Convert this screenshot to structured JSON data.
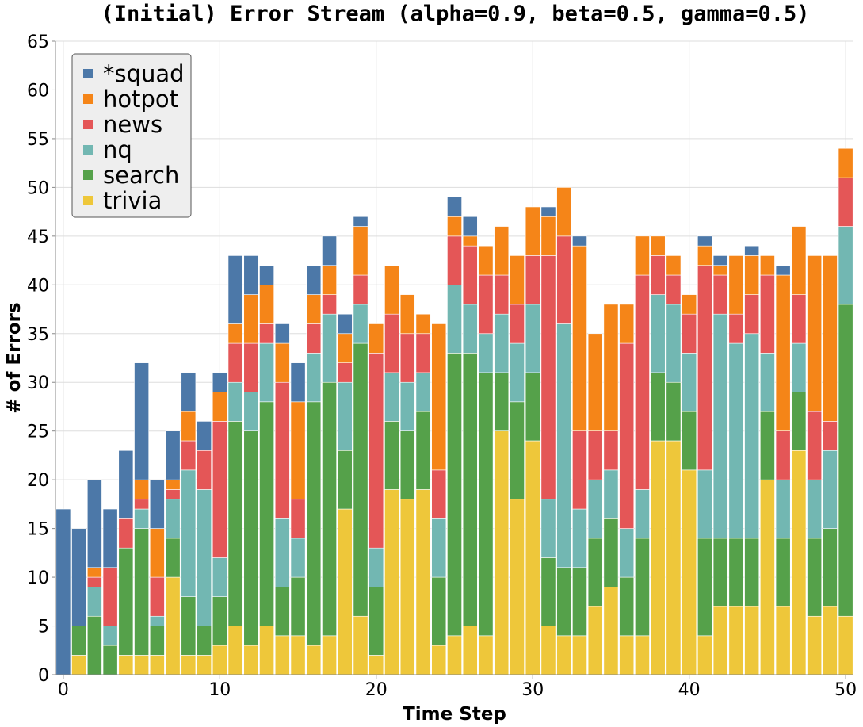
{
  "chart_data": {
    "type": "bar",
    "stacked": true,
    "title": "(Initial) Error Stream (alpha=0.9, beta=0.5, gamma=0.5)",
    "xlabel": "Time Step",
    "ylabel": "# of Errors",
    "ylim": [
      0,
      65
    ],
    "xlim": [
      -0.5,
      50.5
    ],
    "xticks": [
      0,
      10,
      20,
      30,
      40,
      50
    ],
    "yticks": [
      0,
      5,
      10,
      15,
      20,
      25,
      30,
      35,
      40,
      45,
      50,
      55,
      60,
      65
    ],
    "grid": true,
    "legend_position": "top-left",
    "x": [
      0,
      1,
      2,
      3,
      4,
      5,
      6,
      7,
      8,
      9,
      10,
      11,
      12,
      13,
      14,
      15,
      16,
      17,
      18,
      19,
      20,
      21,
      22,
      23,
      24,
      25,
      26,
      27,
      28,
      29,
      30,
      31,
      32,
      33,
      34,
      35,
      36,
      37,
      38,
      39,
      40,
      41,
      42,
      43,
      44,
      45,
      46,
      47,
      48,
      49,
      50
    ],
    "series": [
      {
        "name": "trivia",
        "color": "#eec73a",
        "values": [
          0,
          2,
          0,
          0,
          2,
          2,
          2,
          10,
          2,
          2,
          3,
          5,
          3,
          5,
          4,
          4,
          3,
          4,
          17,
          6,
          2,
          19,
          18,
          19,
          3,
          4,
          5,
          4,
          25,
          18,
          24,
          5,
          4,
          4,
          7,
          9,
          4,
          4,
          24,
          24,
          21,
          4,
          7,
          7,
          7,
          20,
          7,
          23,
          6,
          7,
          6
        ]
      },
      {
        "name": "search",
        "color": "#55a14a",
        "values": [
          0,
          3,
          6,
          3,
          11,
          13,
          3,
          4,
          6,
          3,
          5,
          21,
          22,
          23,
          5,
          6,
          25,
          26,
          6,
          28,
          7,
          7,
          7,
          8,
          7,
          29,
          28,
          27,
          6,
          10,
          7,
          7,
          7,
          7,
          7,
          7,
          6,
          10,
          7,
          6,
          6,
          10,
          7,
          7,
          7,
          7,
          7,
          6,
          8,
          8,
          32
        ]
      },
      {
        "name": "nq",
        "color": "#72b7b2",
        "values": [
          0,
          0,
          3,
          2,
          0,
          2,
          1,
          4,
          13,
          14,
          4,
          4,
          4,
          6,
          7,
          4,
          5,
          7,
          7,
          4,
          4,
          5,
          5,
          4,
          6,
          7,
          5,
          4,
          6,
          6,
          7,
          6,
          25,
          6,
          6,
          5,
          5,
          5,
          8,
          8,
          6,
          7,
          23,
          20,
          21,
          6,
          6,
          5,
          6,
          8,
          8
        ]
      },
      {
        "name": "news",
        "color": "#e45657",
        "values": [
          0,
          0,
          1,
          6,
          3,
          1,
          4,
          1,
          3,
          4,
          14,
          4,
          5,
          2,
          14,
          4,
          3,
          2,
          2,
          3,
          20,
          6,
          5,
          4,
          5,
          5,
          6,
          6,
          4,
          4,
          5,
          25,
          9,
          8,
          5,
          4,
          19,
          22,
          4,
          3,
          4,
          21,
          4,
          3,
          4,
          8,
          5,
          5,
          7,
          3,
          5
        ]
      },
      {
        "name": "hotpot",
        "color": "#f58518",
        "values": [
          0,
          0,
          1,
          0,
          0,
          2,
          5,
          1,
          3,
          0,
          3,
          2,
          5,
          4,
          4,
          10,
          3,
          3,
          3,
          5,
          3,
          5,
          4,
          2,
          15,
          2,
          1,
          3,
          5,
          5,
          5,
          4,
          5,
          19,
          10,
          13,
          4,
          4,
          2,
          2,
          2,
          2,
          1,
          6,
          4,
          2,
          16,
          7,
          16,
          17,
          3
        ]
      },
      {
        "name": "*squad",
        "color": "#4c78a8",
        "values": [
          17,
          10,
          9,
          6,
          7,
          12,
          5,
          5,
          4,
          3,
          2,
          7,
          4,
          2,
          2,
          4,
          3,
          3,
          2,
          1,
          0,
          0,
          0,
          0,
          0,
          2,
          2,
          0,
          0,
          0,
          0,
          1,
          0,
          1,
          0,
          0,
          0,
          0,
          0,
          0,
          0,
          1,
          1,
          0,
          1,
          0,
          1,
          0,
          0,
          0,
          0
        ]
      }
    ],
    "legend": [
      "*squad",
      "hotpot",
      "news",
      "nq",
      "search",
      "trivia"
    ]
  }
}
